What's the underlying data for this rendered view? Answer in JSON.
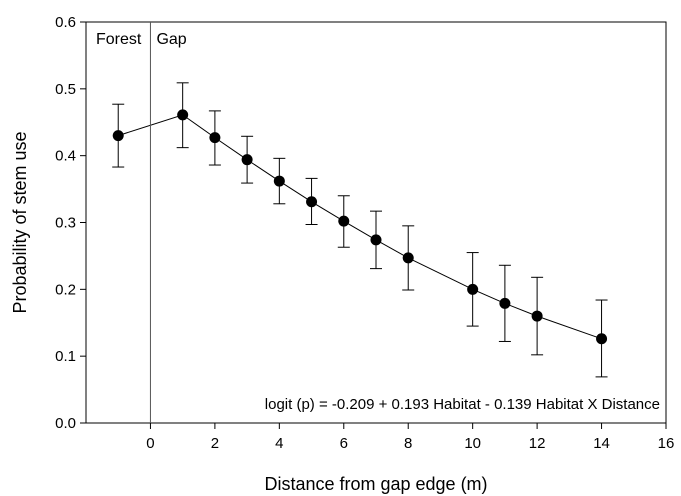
{
  "chart_data": {
    "type": "scatter",
    "xlabel": "Distance from gap edge (m)",
    "ylabel": "Probability of stem use",
    "xlim": [
      -2,
      16
    ],
    "ylim": [
      0,
      0.6
    ],
    "x_ticks": [
      0,
      2,
      4,
      6,
      8,
      10,
      12,
      14,
      16
    ],
    "y_ticks": [
      0.0,
      0.1,
      0.2,
      0.3,
      0.4,
      0.5,
      0.6
    ],
    "x_tick_labels": [
      "0",
      "2",
      "4",
      "6",
      "8",
      "10",
      "12",
      "14",
      "16"
    ],
    "y_tick_labels": [
      "0.0",
      "0.1",
      "0.2",
      "0.3",
      "0.4",
      "0.5",
      "0.6"
    ],
    "grid": false,
    "vertical_reference_line_x": 0,
    "region_labels": [
      "Forest",
      "Gap"
    ],
    "annotation": "logit (p) = -0.209 + 0.193 Habitat - 0.139 Habitat X Distance",
    "points": [
      {
        "x": -1,
        "y": 0.43,
        "err_low": 0.383,
        "err_high": 0.477
      },
      {
        "x": 1,
        "y": 0.461,
        "err_low": 0.412,
        "err_high": 0.509
      },
      {
        "x": 2,
        "y": 0.427,
        "err_low": 0.386,
        "err_high": 0.467
      },
      {
        "x": 3,
        "y": 0.394,
        "err_low": 0.359,
        "err_high": 0.429
      },
      {
        "x": 4,
        "y": 0.362,
        "err_low": 0.328,
        "err_high": 0.396
      },
      {
        "x": 5,
        "y": 0.331,
        "err_low": 0.297,
        "err_high": 0.366
      },
      {
        "x": 6,
        "y": 0.302,
        "err_low": 0.263,
        "err_high": 0.34
      },
      {
        "x": 7,
        "y": 0.274,
        "err_low": 0.231,
        "err_high": 0.317
      },
      {
        "x": 8,
        "y": 0.247,
        "err_low": 0.199,
        "err_high": 0.295
      },
      {
        "x": 10,
        "y": 0.2,
        "err_low": 0.145,
        "err_high": 0.255
      },
      {
        "x": 11,
        "y": 0.179,
        "err_low": 0.122,
        "err_high": 0.236
      },
      {
        "x": 12,
        "y": 0.16,
        "err_low": 0.102,
        "err_high": 0.218
      },
      {
        "x": 14,
        "y": 0.126,
        "err_low": 0.069,
        "err_high": 0.184
      }
    ]
  }
}
